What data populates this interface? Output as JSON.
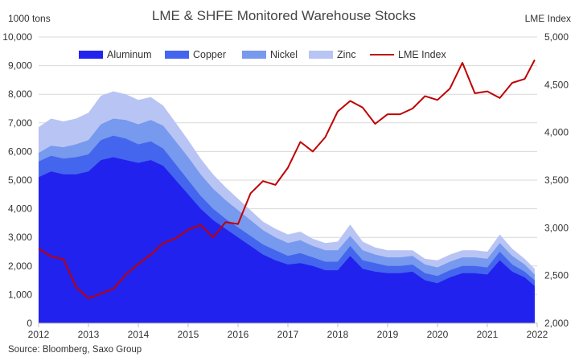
{
  "chart_data": {
    "type": "area",
    "title": "LME & SHFE Monitored Warehouse Stocks",
    "source": "Source: Bloomberg, Saxo Group",
    "y_left": {
      "label": "1000 tons",
      "ylim": [
        0,
        10000
      ],
      "ticks": [
        0,
        1000,
        2000,
        3000,
        4000,
        5000,
        6000,
        7000,
        8000,
        9000,
        10000
      ],
      "tick_labels": [
        "0",
        "1,000",
        "2,000",
        "3,000",
        "4,000",
        "5,000",
        "6,000",
        "7,000",
        "8,000",
        "9,000",
        "10,000"
      ]
    },
    "y_right": {
      "label": "LME Index",
      "ylim": [
        2000,
        5000
      ],
      "ticks": [
        2000,
        2500,
        3000,
        3500,
        4000,
        4500,
        5000
      ],
      "tick_labels": [
        "2,000",
        "2,500",
        "3,000",
        "3,500",
        "4,000",
        "4,500",
        "5,000"
      ]
    },
    "x": {
      "xlim": [
        2012,
        2022
      ],
      "ticks": [
        2012,
        2013,
        2014,
        2015,
        2016,
        2017,
        2018,
        2019,
        2020,
        2021,
        2022
      ],
      "tick_labels": [
        "2012",
        "2013",
        "2014",
        "2015",
        "2016",
        "2017",
        "2018",
        "2019",
        "2020",
        "2021",
        "2022"
      ]
    },
    "legend_position": "top",
    "grid": true,
    "x_values": [
      2012.0,
      2012.25,
      2012.5,
      2012.75,
      2013.0,
      2013.25,
      2013.5,
      2013.75,
      2014.0,
      2014.25,
      2014.5,
      2014.75,
      2015.0,
      2015.25,
      2015.5,
      2015.75,
      2016.0,
      2016.25,
      2016.5,
      2016.75,
      2017.0,
      2017.25,
      2017.5,
      2017.75,
      2018.0,
      2018.25,
      2018.5,
      2018.75,
      2019.0,
      2019.25,
      2019.5,
      2019.75,
      2020.0,
      2020.25,
      2020.5,
      2020.75,
      2021.0,
      2021.25,
      2021.5,
      2021.75,
      2021.95
    ],
    "stacked_series": [
      {
        "name": "Aluminum",
        "color": "#2222ee",
        "values": [
          5100,
          5300,
          5200,
          5200,
          5300,
          5700,
          5800,
          5700,
          5600,
          5700,
          5500,
          5000,
          4500,
          4000,
          3600,
          3300,
          3000,
          2700,
          2400,
          2200,
          2050,
          2100,
          2000,
          1850,
          1850,
          2350,
          1900,
          1800,
          1750,
          1750,
          1800,
          1500,
          1400,
          1600,
          1750,
          1750,
          1700,
          2200,
          1800,
          1600,
          1300
        ]
      },
      {
        "name": "Copper",
        "color": "#4466ee",
        "values": [
          550,
          550,
          550,
          600,
          600,
          700,
          750,
          750,
          650,
          650,
          600,
          550,
          500,
          450,
          400,
          350,
          350,
          350,
          350,
          350,
          300,
          350,
          300,
          300,
          300,
          350,
          300,
          300,
          250,
          250,
          250,
          250,
          250,
          250,
          250,
          250,
          250,
          300,
          250,
          200,
          200
        ]
      },
      {
        "name": "Nickel",
        "color": "#7799ee",
        "values": [
          300,
          350,
          400,
          450,
          500,
          550,
          600,
          650,
          700,
          750,
          800,
          800,
          800,
          750,
          700,
          650,
          600,
          550,
          500,
          450,
          450,
          450,
          400,
          400,
          400,
          350,
          350,
          300,
          300,
          300,
          300,
          300,
          300,
          300,
          300,
          300,
          300,
          300,
          300,
          250,
          200
        ]
      },
      {
        "name": "Zinc",
        "color": "#b8c4f4",
        "values": [
          900,
          950,
          900,
          900,
          950,
          1000,
          950,
          900,
          850,
          800,
          700,
          650,
          600,
          550,
          500,
          450,
          400,
          350,
          300,
          300,
          300,
          300,
          250,
          250,
          300,
          400,
          300,
          250,
          250,
          250,
          200,
          200,
          250,
          250,
          250,
          250,
          250,
          300,
          250,
          200,
          200
        ]
      }
    ],
    "line_series": {
      "name": "LME Index",
      "color": "#c00000",
      "axis": "right",
      "values": [
        2780,
        2700,
        2670,
        2380,
        2260,
        2310,
        2360,
        2510,
        2620,
        2720,
        2840,
        2890,
        2980,
        3030,
        2900,
        3060,
        3040,
        3360,
        3490,
        3450,
        3630,
        3900,
        3800,
        3950,
        4220,
        4330,
        4260,
        4090,
        4190,
        4190,
        4250,
        4380,
        4340,
        4460,
        4730,
        4410,
        4430,
        4360,
        4520,
        4560,
        4760
      ]
    }
  }
}
